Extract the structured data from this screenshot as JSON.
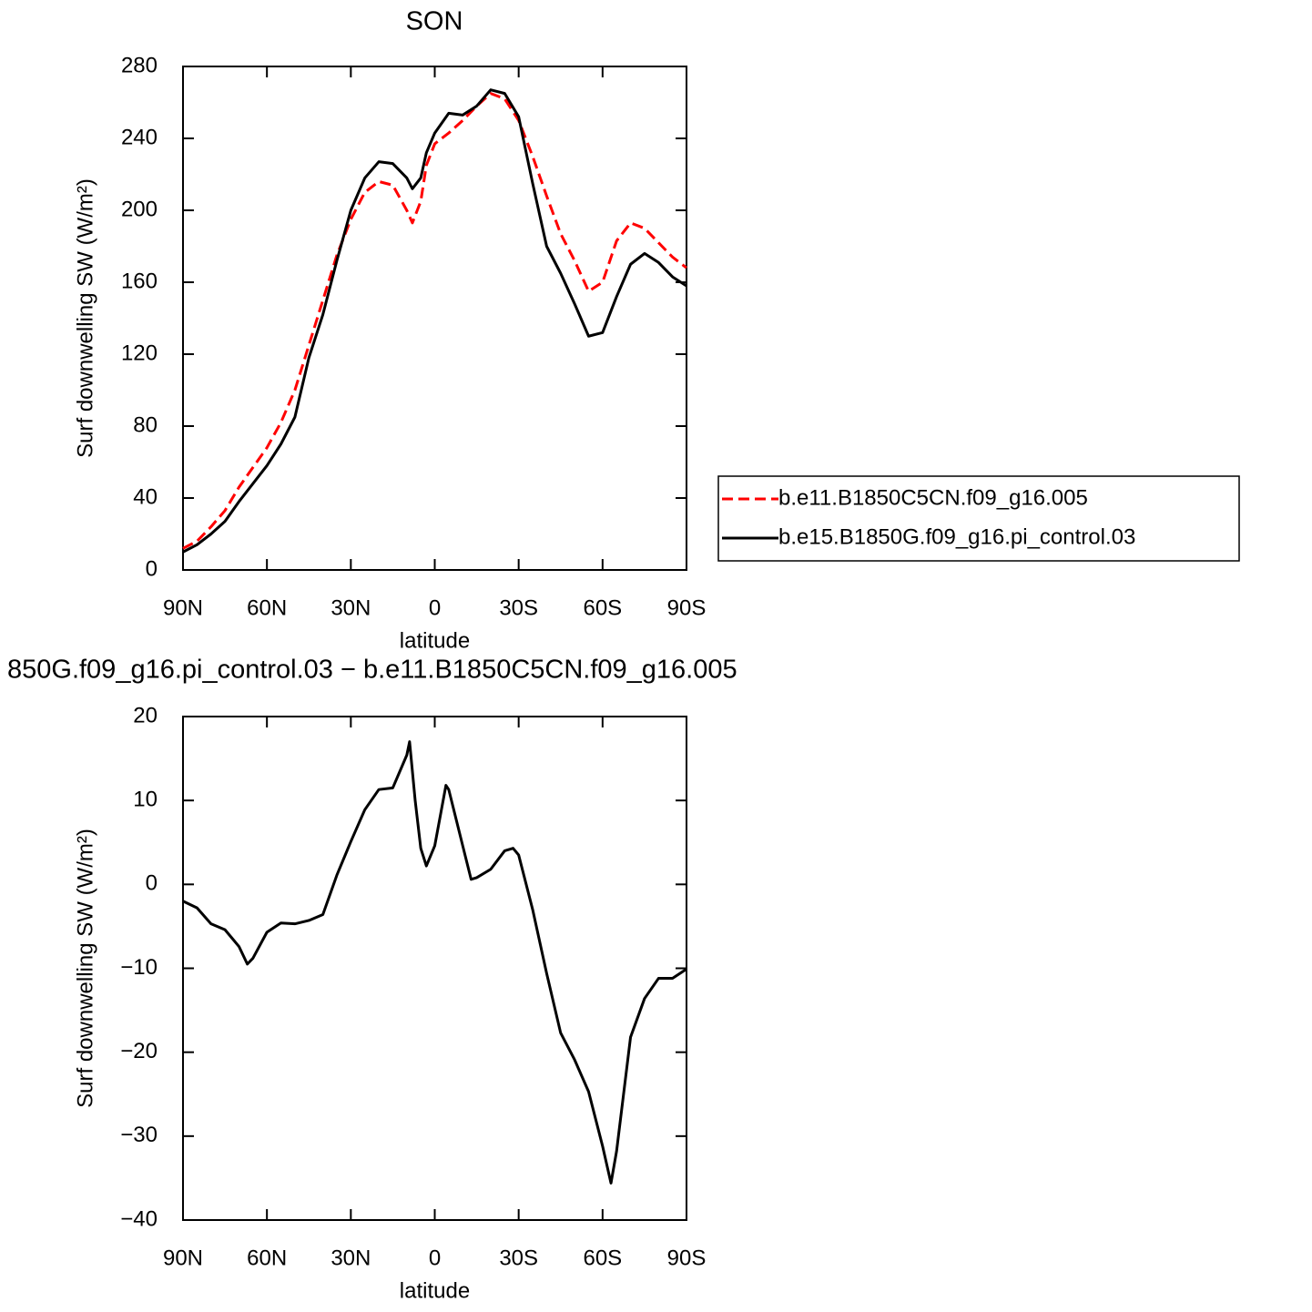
{
  "chart_data": [
    {
      "type": "line",
      "title": "SON",
      "xlabel": "latitude",
      "ylabel": "Surf downwelling SW (W/m²)",
      "x": [
        90,
        85,
        80,
        75,
        70,
        65,
        60,
        55,
        50,
        45,
        40,
        35,
        30,
        25,
        20,
        15,
        10,
        8,
        5,
        3,
        0,
        -5,
        -10,
        -15,
        -20,
        -25,
        -30,
        -35,
        -40,
        -45,
        -50,
        -55,
        -60,
        -65,
        -70,
        -75,
        -80,
        -85,
        -90
      ],
      "series": [
        {
          "name": "b.e11.B1850C5CN.f09_g16.005",
          "color": "#ff0000",
          "line_style": "dashed",
          "values": [
            12,
            16,
            24,
            33,
            46,
            57,
            68,
            82,
            100,
            125,
            150,
            175,
            195,
            210,
            216,
            214,
            200,
            193,
            205,
            225,
            237,
            243,
            250,
            258,
            265,
            262,
            250,
            230,
            208,
            187,
            172,
            155,
            160,
            183,
            193,
            190,
            182,
            174,
            168
          ]
        },
        {
          "name": "b.e15.B1850G.f09_g16.pi_control.03",
          "color": "#000000",
          "line_style": "solid",
          "values": [
            10,
            14,
            20,
            27,
            38,
            48,
            58,
            70,
            85,
            118,
            142,
            172,
            200,
            218,
            227,
            226,
            218,
            212,
            218,
            232,
            243,
            254,
            253,
            258,
            267,
            265,
            252,
            215,
            180,
            165,
            148,
            130,
            132,
            152,
            170,
            176,
            171,
            163,
            158
          ]
        }
      ],
      "xlim": [
        90,
        -90
      ],
      "xticks": [
        {
          "value": 90,
          "label": "90N"
        },
        {
          "value": 60,
          "label": "60N"
        },
        {
          "value": 30,
          "label": "30N"
        },
        0,
        {
          "value": -30,
          "label": "30S"
        },
        {
          "value": -60,
          "label": "60S"
        },
        {
          "value": -90,
          "label": "90S"
        }
      ],
      "ylim": [
        0,
        280
      ],
      "yticks": [
        0,
        40,
        80,
        120,
        160,
        200,
        240,
        280
      ],
      "legend": "right"
    },
    {
      "type": "line",
      "title": "850G.f09_g16.pi_control.03 − b.e11.B1850C5CN.f09_g16.005",
      "xlabel": "latitude",
      "ylabel": "Surf downwelling SW (W/m²)",
      "x": [
        90,
        85,
        80,
        75,
        70,
        67,
        65,
        60,
        55,
        50,
        45,
        40,
        35,
        30,
        25,
        20,
        15,
        10,
        9,
        7,
        5,
        3,
        0,
        -4,
        -5,
        -10,
        -13,
        -15,
        -20,
        -25,
        -28,
        -30,
        -35,
        -40,
        -45,
        -50,
        -55,
        -60,
        -63,
        -65,
        -70,
        -75,
        -80,
        -85,
        -90
      ],
      "values": [
        -2.0,
        -2.8,
        -4.7,
        -5.4,
        -7.4,
        -9.5,
        -8.8,
        -5.7,
        -4.6,
        -4.7,
        -4.3,
        -3.6,
        1.1,
        5.1,
        8.9,
        11.3,
        11.5,
        15.4,
        17,
        10,
        4.3,
        2.2,
        4.6,
        11.8,
        11.3,
        4.6,
        0.6,
        0.8,
        1.8,
        4.0,
        4.3,
        3.5,
        -3.0,
        -10.6,
        -17.7,
        -20.9,
        -24.7,
        -31.2,
        -35.6,
        -31.8,
        -18.2,
        -13.6,
        -11.2,
        -11.2,
        -10.1
      ],
      "color": "#000000",
      "xlim": [
        90,
        -90
      ],
      "xticks": [
        {
          "value": 90,
          "label": "90N"
        },
        {
          "value": 60,
          "label": "60N"
        },
        {
          "value": 30,
          "label": "30N"
        },
        0,
        {
          "value": -30,
          "label": "30S"
        },
        {
          "value": -60,
          "label": "60S"
        },
        {
          "value": -90,
          "label": "90S"
        }
      ],
      "ylim": [
        -40,
        20
      ],
      "yticks": [
        {
          "value": -40,
          "label": "−40"
        },
        {
          "value": -30,
          "label": "−30"
        },
        {
          "value": -20,
          "label": "−20"
        },
        {
          "value": -10,
          "label": "−10"
        },
        0,
        10,
        20
      ]
    }
  ]
}
